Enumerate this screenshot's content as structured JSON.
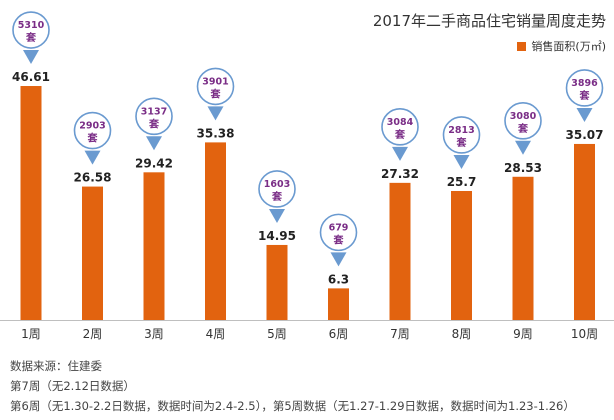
{
  "chart_data": {
    "type": "bar",
    "title": "2017年二手商品住宅销量周度走势",
    "legend": "销售面积(万㎡)",
    "legend_position": "top-right",
    "categories": [
      "1周",
      "2周",
      "3周",
      "4周",
      "5周",
      "6周",
      "7周",
      "8周",
      "9周",
      "10周"
    ],
    "series": [
      {
        "name": "销售面积(万㎡)",
        "values": [
          46.61,
          26.58,
          29.42,
          35.38,
          14.95,
          6.3,
          27.32,
          25.7,
          28.53,
          35.07
        ]
      }
    ],
    "callouts": [
      {
        "count": "5310",
        "unit": "套"
      },
      {
        "count": "2903",
        "unit": "套"
      },
      {
        "count": "3137",
        "unit": "套"
      },
      {
        "count": "3901",
        "unit": "套"
      },
      {
        "count": "1603",
        "unit": "套"
      },
      {
        "count": "679",
        "unit": "套"
      },
      {
        "count": "3084",
        "unit": "套"
      },
      {
        "count": "2813",
        "unit": "套"
      },
      {
        "count": "3080",
        "unit": "套"
      },
      {
        "count": "3896",
        "unit": "套"
      }
    ],
    "ylim": [
      0,
      50
    ],
    "grid": false,
    "colors": {
      "bar": "#e2630f",
      "pin": "#6a9ad0",
      "callout_text": "#7a2d86"
    }
  },
  "footnotes": {
    "source": "数据来源：住建委",
    "note1": "第7周（无2.12日数据）",
    "note2": "第6周（无1.30-2.2日数据，数据时间为2.4-2.5），第5周数据（无1.27-1.29日数据，数据时间为1.23-1.26）"
  }
}
